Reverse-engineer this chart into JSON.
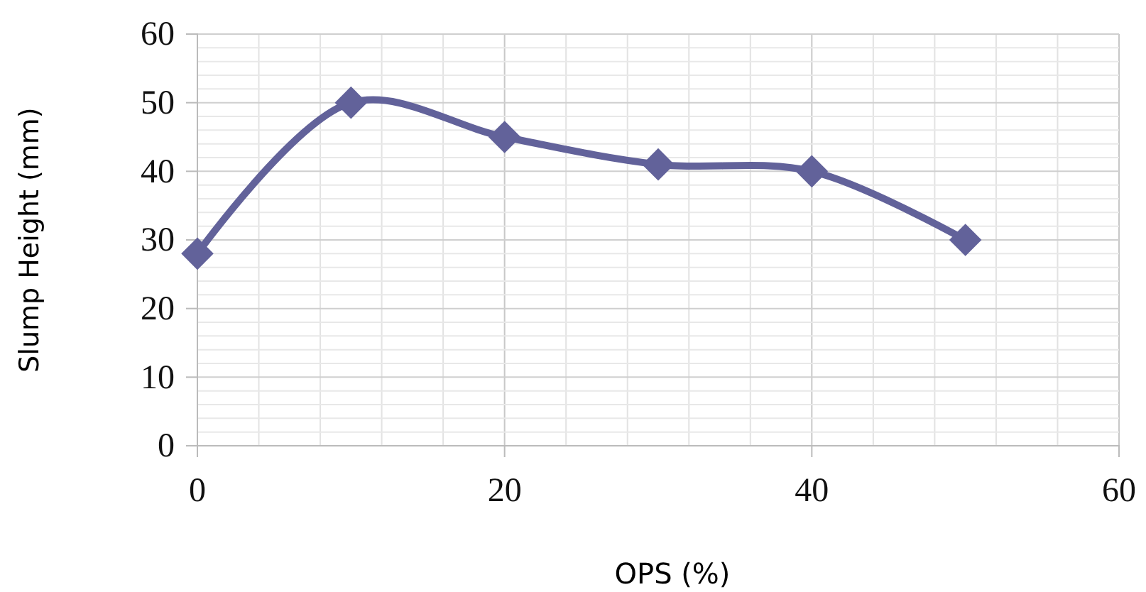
{
  "chart_data": {
    "type": "line",
    "xlabel": "OPS (%)",
    "ylabel": "Slump Height (mm)",
    "x": [
      0,
      10,
      20,
      30,
      40,
      50
    ],
    "series": [
      {
        "color": "#62629a",
        "values": [
          28,
          50,
          45,
          41,
          40,
          30
        ]
      }
    ],
    "xlim": [
      0,
      60
    ],
    "xticks": [
      0,
      20,
      40,
      60
    ],
    "ylim": [
      0,
      60
    ],
    "yticks": [
      0,
      10,
      20,
      30,
      40,
      50,
      60
    ],
    "grid": true,
    "marker": "diamond",
    "line_style": "solid"
  }
}
